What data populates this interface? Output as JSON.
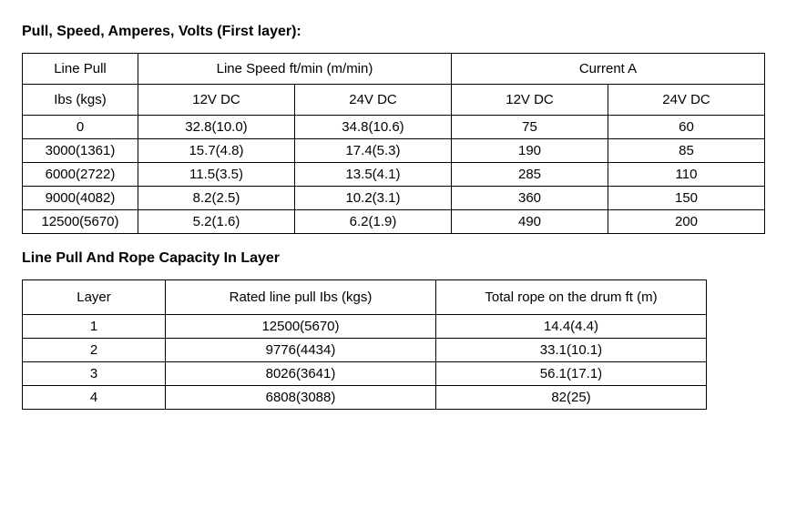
{
  "title1": "Pull, Speed, Amperes, Volts (First layer):",
  "table1": {
    "header_row1": {
      "col0": "Line Pull",
      "col1": "Line Speed ft/min (m/min)",
      "col2": "Current   A"
    },
    "header_row2": {
      "c0": "Ibs (kgs)",
      "c1": "12V DC",
      "c2": "24V DC",
      "c3": "12V DC",
      "c4": "24V DC"
    },
    "rows": [
      {
        "c0": "0",
        "c1": "32.8(10.0)",
        "c2": "34.8(10.6)",
        "c3": "75",
        "c4": "60"
      },
      {
        "c0": "3000(1361)",
        "c1": "15.7(4.8)",
        "c2": "17.4(5.3)",
        "c3": "190",
        "c4": "85"
      },
      {
        "c0": "6000(2722)",
        "c1": "11.5(3.5)",
        "c2": "13.5(4.1)",
        "c3": "285",
        "c4": "110"
      },
      {
        "c0": "9000(4082)",
        "c1": "8.2(2.5)",
        "c2": "10.2(3.1)",
        "c3": "360",
        "c4": "150"
      },
      {
        "c0": "12500(5670)",
        "c1": "5.2(1.6)",
        "c2": "6.2(1.9)",
        "c3": "490",
        "c4": "200"
      }
    ]
  },
  "title2": "Line Pull And Rope Capacity In Layer",
  "table2": {
    "header": {
      "c0": "Layer",
      "c1": "Rated line pull Ibs (kgs)",
      "c2": "Total rope on the drum ft (m)"
    },
    "rows": [
      {
        "c0": "1",
        "c1": "12500(5670)",
        "c2": "14.4(4.4)"
      },
      {
        "c0": "2",
        "c1": "9776(4434)",
        "c2": "33.1(10.1)"
      },
      {
        "c0": "3",
        "c1": "8026(3641)",
        "c2": "56.1(17.1)"
      },
      {
        "c0": "4",
        "c1": "6808(3088)",
        "c2": "82(25)"
      }
    ]
  }
}
